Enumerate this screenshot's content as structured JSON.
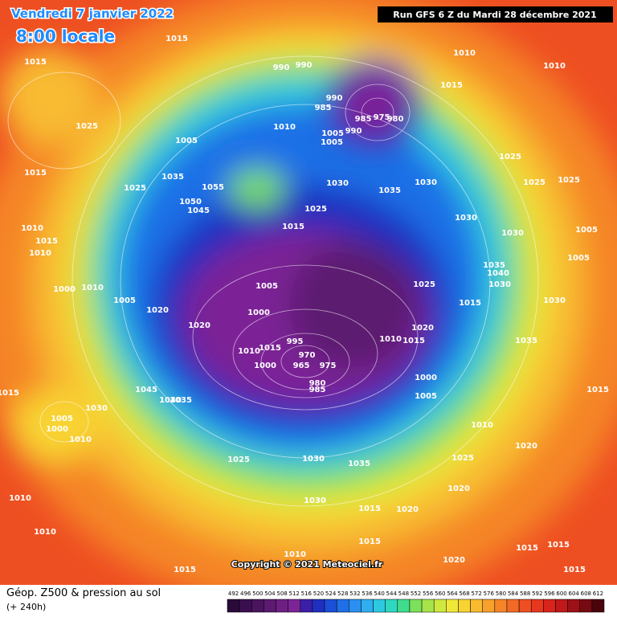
{
  "header": {
    "date": "Vendredi 7 janvier 2022",
    "time": "8:00 locale",
    "run": "Run GFS 6 Z du Mardi 28 décembre 2021"
  },
  "copyright": "Copyright © 2021 Meteociel.fr",
  "legend": {
    "title": "Géop. Z500 & pression au sol",
    "lead": "(+ 240h)",
    "ticks": [
      492,
      496,
      500,
      504,
      508,
      512,
      516,
      520,
      524,
      528,
      532,
      536,
      540,
      544,
      548,
      552,
      556,
      560,
      564,
      568,
      572,
      576,
      580,
      584,
      588,
      592,
      596,
      600,
      604,
      608,
      612
    ],
    "colors": [
      "#2a0a3a",
      "#3a0f4f",
      "#4b145f",
      "#5c1a70",
      "#6e1f82",
      "#7c2496",
      "#3b1ea8",
      "#1f2fc0",
      "#1a4fd6",
      "#1f6fe6",
      "#2a8ff0",
      "#30aef0",
      "#2dc9e0",
      "#2ed8bf",
      "#3fdc8c",
      "#7be05a",
      "#a6e44a",
      "#cfe840",
      "#f0e838",
      "#f8d433",
      "#f8bb30",
      "#f7a02b",
      "#f58528",
      "#f26a25",
      "#ee4f22",
      "#e8371f",
      "#d9241c",
      "#c1181a",
      "#9e1017",
      "#760a12",
      "#4a050c"
    ]
  },
  "isobar_labels": [
    1015,
    1015,
    990,
    990,
    1010,
    1010,
    1025,
    990,
    985,
    985,
    975,
    980,
    1015,
    1005,
    1010,
    1005,
    990,
    1005,
    1025,
    1015,
    1025,
    1035,
    1055,
    1050,
    1045,
    1030,
    1035,
    1030,
    1025,
    1015,
    1030,
    1030,
    1025,
    1025,
    1010,
    1015,
    1010,
    1005,
    1005,
    1035,
    1040,
    1030,
    1000,
    1010,
    1005,
    1020,
    1005,
    1025,
    1000,
    1030,
    1015,
    1020,
    1020,
    1010,
    1015,
    1035,
    1010,
    995,
    1015,
    970,
    1000,
    965,
    975,
    980,
    985,
    1000,
    1005,
    1045,
    1040,
    1035,
    1015,
    1015,
    1005,
    1000,
    1010,
    1030,
    1010,
    1020,
    1025,
    1030,
    1035,
    1025,
    1020,
    1010,
    1030,
    1015,
    1020,
    1010,
    1015,
    1015,
    1015,
    1020,
    1010,
    1015,
    1015
  ]
}
